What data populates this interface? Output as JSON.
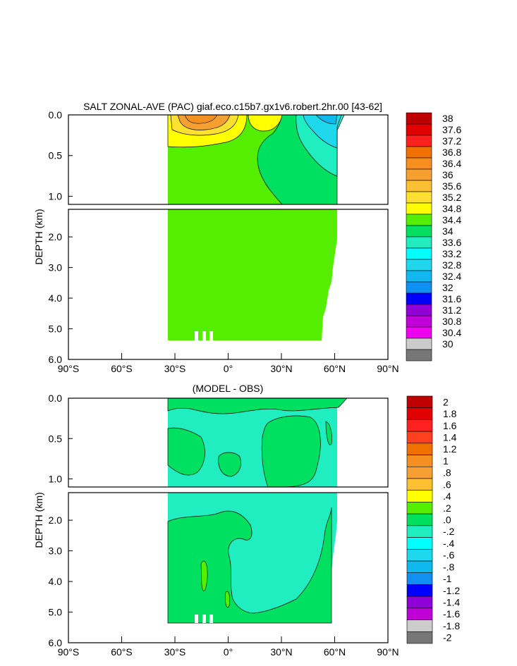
{
  "chart_data": [
    {
      "type": "contour",
      "title": "SALT ZONAL-AVE (PAC) giaf.eco.c15b7.gx1v6.robert.2hr.00 [43-62]",
      "ylabel": "DEPTH (km)",
      "xlim": [
        -90,
        90
      ],
      "ylim_upper": [
        0.0,
        1.1
      ],
      "ylim_lower": [
        1.1,
        6.0
      ],
      "x_ticks": [
        {
          "value": -90,
          "label": "90°S"
        },
        {
          "value": -60,
          "label": "60°S"
        },
        {
          "value": -30,
          "label": "30°S"
        },
        {
          "value": 0,
          "label": "0°"
        },
        {
          "value": 30,
          "label": "30°N"
        },
        {
          "value": 60,
          "label": "60°N"
        },
        {
          "value": 90,
          "label": "90°N"
        }
      ],
      "y_ticks_upper": [
        {
          "value": 0.0,
          "label": "0.0"
        },
        {
          "value": 0.5,
          "label": "0.5"
        },
        {
          "value": 1.0,
          "label": "1.0"
        }
      ],
      "y_ticks_lower": [
        {
          "value": 2.0,
          "label": "2.0"
        },
        {
          "value": 3.0,
          "label": "3.0"
        },
        {
          "value": 4.0,
          "label": "4.0"
        },
        {
          "value": 5.0,
          "label": "5.0"
        },
        {
          "value": 6.0,
          "label": "6.0"
        }
      ],
      "colorbar": {
        "labels": [
          "38",
          "37.6",
          "37.2",
          "36.8",
          "36.4",
          "36",
          "35.6",
          "35.2",
          "34.8",
          "34.4",
          "34",
          "33.6",
          "33.2",
          "32.8",
          "32.4",
          "32",
          "31.6",
          "31.2",
          "30.8",
          "30.4",
          "30"
        ],
        "colors": [
          "#c00000",
          "#e00000",
          "#ff2020",
          "#f07000",
          "#f59020",
          "#f5a030",
          "#fcc030",
          "#fde030",
          "#ffff00",
          "#55ee00",
          "#00e060",
          "#20eec0",
          "#00ffff",
          "#20d8ee",
          "#10b8f0",
          "#1090f0",
          "#0000ff",
          "#9000d8",
          "#c000d8",
          "#f000f0",
          "#cccccc",
          "#777777"
        ]
      },
      "regions": [
        {
          "label": "34.4 to 34.8 (dominant)",
          "x_range": [
            -33,
            62
          ],
          "depth_range": [
            0.0,
            5.4
          ]
        },
        {
          "label": "35.2 to 36.4 (subtropical south max)",
          "x_range": [
            -33,
            -5
          ],
          "depth_range": [
            0.0,
            0.25
          ]
        },
        {
          "label": "35.2 to 35.6 (subtropical north max)",
          "x_range": [
            5,
            20
          ],
          "depth_range": [
            0.0,
            0.1
          ]
        },
        {
          "label": "32.4 to 34.0 (subpolar north fresh)",
          "x_range": [
            40,
            62
          ],
          "depth_range": [
            0.0,
            0.6
          ]
        },
        {
          "label": "34.0 to 34.4 (north intermediate)",
          "x_range": [
            30,
            62
          ],
          "depth_range": [
            0.1,
            1.1
          ]
        }
      ]
    },
    {
      "type": "contour",
      "title": "(MODEL - OBS)",
      "ylabel": "DEPTH (km)",
      "xlim": [
        -90,
        90
      ],
      "ylim_upper": [
        0.0,
        1.1
      ],
      "ylim_lower": [
        1.1,
        6.0
      ],
      "x_ticks": [
        {
          "value": -90,
          "label": "90°S"
        },
        {
          "value": -60,
          "label": "60°S"
        },
        {
          "value": -30,
          "label": "30°S"
        },
        {
          "value": 0,
          "label": "0°"
        },
        {
          "value": 30,
          "label": "30°N"
        },
        {
          "value": 60,
          "label": "60°N"
        },
        {
          "value": 90,
          "label": "90°N"
        }
      ],
      "y_ticks_upper": [
        {
          "value": 0.0,
          "label": "0.0"
        },
        {
          "value": 0.5,
          "label": "0.5"
        },
        {
          "value": 1.0,
          "label": "1.0"
        }
      ],
      "y_ticks_lower": [
        {
          "value": 2.0,
          "label": "2.0"
        },
        {
          "value": 3.0,
          "label": "3.0"
        },
        {
          "value": 4.0,
          "label": "4.0"
        },
        {
          "value": 5.0,
          "label": "5.0"
        },
        {
          "value": 6.0,
          "label": "6.0"
        }
      ],
      "colorbar": {
        "labels": [
          "2",
          "1.8",
          "1.6",
          "1.4",
          "1.2",
          "1",
          ".8",
          ".6",
          ".4",
          ".2",
          ".0",
          "-.2",
          "-.4",
          "-.6",
          "-.8",
          "-1",
          "-1.2",
          "-1.4",
          "-1.6",
          "-1.8",
          "-2"
        ],
        "colors": [
          "#c00000",
          "#e00000",
          "#ff2020",
          "#ff4020",
          "#f07000",
          "#f59020",
          "#f5a030",
          "#fcc030",
          "#ffff00",
          "#55ee00",
          "#00e060",
          "#20eec0",
          "#00ffff",
          "#20d8ee",
          "#10b8f0",
          "#1090f0",
          "#0000ff",
          "#9000d8",
          "#c000d8",
          "#cccccc",
          "#777777"
        ]
      },
      "regions": [
        {
          "label": "-0.2 to 0.0 (dominant)",
          "x_range": [
            -33,
            62
          ],
          "depth_range": [
            0.0,
            5.4
          ]
        },
        {
          "label": "0.0 to 0.2 (surface south)",
          "x_range": [
            -33,
            60
          ],
          "depth_range": [
            0.0,
            0.1
          ]
        },
        {
          "label": "0.0 to 0.2 (deep central)",
          "x_range": [
            -30,
            50
          ],
          "depth_range": [
            1.8,
            5.4
          ]
        }
      ]
    }
  ]
}
